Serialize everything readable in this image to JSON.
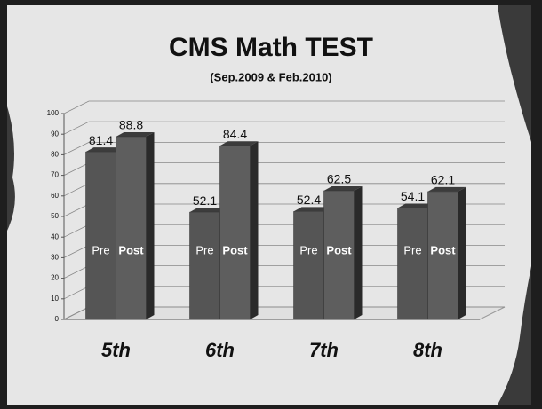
{
  "chart_data": {
    "type": "bar3d",
    "title": "CMS Math TEST",
    "subtitle": "(Sep.2009 & Feb.2010)",
    "categories": [
      "5th",
      "6th",
      "7th",
      "8th"
    ],
    "series": [
      {
        "name": "Pre",
        "color": "#555555",
        "values": [
          81.4,
          52.1,
          52.4,
          54.1
        ]
      },
      {
        "name": "Post",
        "color": "#5e5e5e",
        "values": [
          88.8,
          84.4,
          62.5,
          62.1
        ]
      }
    ],
    "ylim": [
      0,
      100
    ],
    "yticks": [
      0,
      10,
      20,
      30,
      40,
      50,
      60,
      70,
      80,
      90,
      100
    ],
    "grid": true
  }
}
